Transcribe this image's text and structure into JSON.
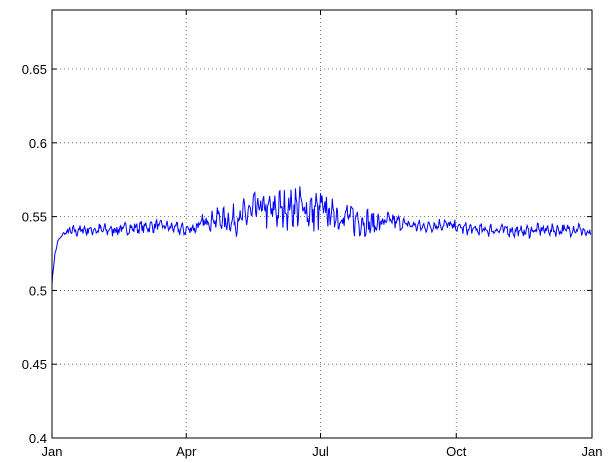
{
  "chart_data": {
    "type": "line",
    "title": "",
    "xlabel": "",
    "ylabel": "",
    "grid": true,
    "x_ticks": [
      "Jan",
      "Apr",
      "Jul",
      "Oct",
      "Jan"
    ],
    "y_ticks": [
      "0.4",
      "0.45",
      "0.5",
      "0.55",
      "0.6",
      "0.65"
    ],
    "xlim": [
      "2000-01-01",
      "2001-01-01"
    ],
    "ylim": [
      0.4,
      0.69
    ],
    "series": [
      {
        "color": "#0000ff",
        "x": [
          "2000-01-01",
          "2000-01-03",
          "2000-01-05",
          "2000-01-08",
          "2000-01-11",
          "2000-01-15",
          "2000-01-22",
          "2000-02-01",
          "2000-02-12",
          "2000-02-22",
          "2000-03-04",
          "2000-03-15",
          "2000-03-25",
          "2000-04-01",
          "2000-04-08",
          "2000-04-15",
          "2000-04-22",
          "2000-04-29",
          "2000-05-06",
          "2000-05-13",
          "2000-05-20",
          "2000-05-27",
          "2000-06-03",
          "2000-06-10",
          "2000-06-17",
          "2000-06-24",
          "2000-07-01",
          "2000-07-08",
          "2000-07-15",
          "2000-07-22",
          "2000-07-29",
          "2000-08-05",
          "2000-08-12",
          "2000-08-19",
          "2000-08-26",
          "2000-09-02",
          "2000-09-09",
          "2000-09-16",
          "2000-09-23",
          "2000-09-30",
          "2000-10-07",
          "2000-10-14",
          "2000-10-21",
          "2000-10-28",
          "2000-11-04",
          "2000-11-11",
          "2000-11-18",
          "2000-11-25",
          "2000-12-02",
          "2000-12-09",
          "2000-12-16",
          "2000-12-23",
          "2000-12-31"
        ],
        "y": [
          0.505,
          0.525,
          0.533,
          0.538,
          0.539,
          0.54,
          0.541,
          0.541,
          0.541,
          0.542,
          0.543,
          0.544,
          0.542,
          0.541,
          0.543,
          0.547,
          0.549,
          0.547,
          0.548,
          0.552,
          0.556,
          0.554,
          0.555,
          0.556,
          0.557,
          0.553,
          0.555,
          0.552,
          0.55,
          0.549,
          0.547,
          0.545,
          0.546,
          0.547,
          0.545,
          0.544,
          0.543,
          0.544,
          0.545,
          0.543,
          0.542,
          0.541,
          0.541,
          0.541,
          0.541,
          0.54,
          0.54,
          0.541,
          0.541,
          0.541,
          0.541,
          0.542,
          0.537
        ]
      }
    ]
  }
}
